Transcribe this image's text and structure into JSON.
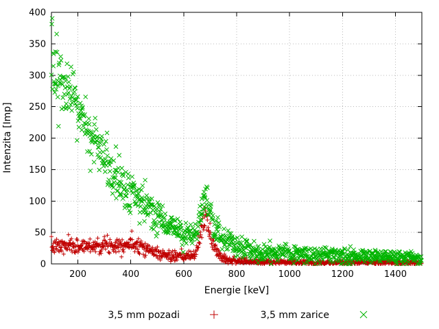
{
  "chart_data": {
    "type": "scatter",
    "xlabel": "Energie [keV]",
    "ylabel": "Intenzita [Imp]",
    "xlim": [
      100,
      1500
    ],
    "ylim": [
      0,
      400
    ],
    "xticks": [
      200,
      400,
      600,
      800,
      1000,
      1200,
      1400
    ],
    "yticks": [
      0,
      50,
      100,
      150,
      200,
      250,
      300,
      350,
      400
    ],
    "grid": true,
    "legend_position": "bottom-center",
    "series": [
      {
        "name": "3,5 mm pozadi",
        "marker": "plus",
        "color": "#c00000",
        "seed": 7,
        "x_step": 1.4,
        "noise_sigma_scale": 1.15,
        "anchors": [
          [
            100,
            27
          ],
          [
            150,
            28
          ],
          [
            200,
            28
          ],
          [
            250,
            29
          ],
          [
            300,
            30
          ],
          [
            350,
            31
          ],
          [
            380,
            32
          ],
          [
            400,
            31
          ],
          [
            420,
            32
          ],
          [
            440,
            30
          ],
          [
            460,
            24
          ],
          [
            480,
            20
          ],
          [
            500,
            17
          ],
          [
            530,
            14
          ],
          [
            560,
            12
          ],
          [
            600,
            11
          ],
          [
            620,
            12
          ],
          [
            640,
            14
          ],
          [
            655,
            30
          ],
          [
            665,
            50
          ],
          [
            672,
            65
          ],
          [
            680,
            73
          ],
          [
            688,
            65
          ],
          [
            695,
            55
          ],
          [
            705,
            40
          ],
          [
            715,
            28
          ],
          [
            725,
            20
          ],
          [
            740,
            13
          ],
          [
            760,
            8
          ],
          [
            780,
            6
          ],
          [
            800,
            5
          ],
          [
            850,
            3.5
          ],
          [
            900,
            3
          ],
          [
            1000,
            2.5
          ],
          [
            1100,
            2
          ],
          [
            1200,
            2
          ],
          [
            1300,
            2
          ],
          [
            1400,
            2
          ],
          [
            1500,
            2
          ]
        ]
      },
      {
        "name": "3,5 mm zarice",
        "marker": "cross",
        "color": "#00b400",
        "seed": 13,
        "x_step": 1.4,
        "noise_sigma_scale": 1.6,
        "anchors": [
          [
            100,
            320
          ],
          [
            110,
            310
          ],
          [
            120,
            300
          ],
          [
            140,
            285
          ],
          [
            160,
            268
          ],
          [
            180,
            255
          ],
          [
            200,
            245
          ],
          [
            220,
            228
          ],
          [
            240,
            210
          ],
          [
            260,
            195
          ],
          [
            280,
            178
          ],
          [
            300,
            163
          ],
          [
            320,
            150
          ],
          [
            340,
            140
          ],
          [
            360,
            130
          ],
          [
            380,
            120
          ],
          [
            400,
            112
          ],
          [
            420,
            104
          ],
          [
            440,
            97
          ],
          [
            460,
            90
          ],
          [
            480,
            83
          ],
          [
            500,
            76
          ],
          [
            520,
            70
          ],
          [
            540,
            64
          ],
          [
            560,
            58
          ],
          [
            580,
            53
          ],
          [
            600,
            48
          ],
          [
            620,
            44
          ],
          [
            640,
            46
          ],
          [
            655,
            60
          ],
          [
            665,
            80
          ],
          [
            672,
            95
          ],
          [
            680,
            103
          ],
          [
            688,
            95
          ],
          [
            695,
            85
          ],
          [
            705,
            70
          ],
          [
            715,
            58
          ],
          [
            725,
            50
          ],
          [
            740,
            42
          ],
          [
            760,
            35
          ],
          [
            780,
            30
          ],
          [
            800,
            27
          ],
          [
            840,
            23
          ],
          [
            880,
            20
          ],
          [
            920,
            18
          ],
          [
            960,
            17
          ],
          [
            1000,
            16
          ],
          [
            1100,
            14
          ],
          [
            1200,
            13
          ],
          [
            1300,
            12
          ],
          [
            1400,
            11
          ],
          [
            1500,
            10
          ]
        ]
      }
    ]
  }
}
